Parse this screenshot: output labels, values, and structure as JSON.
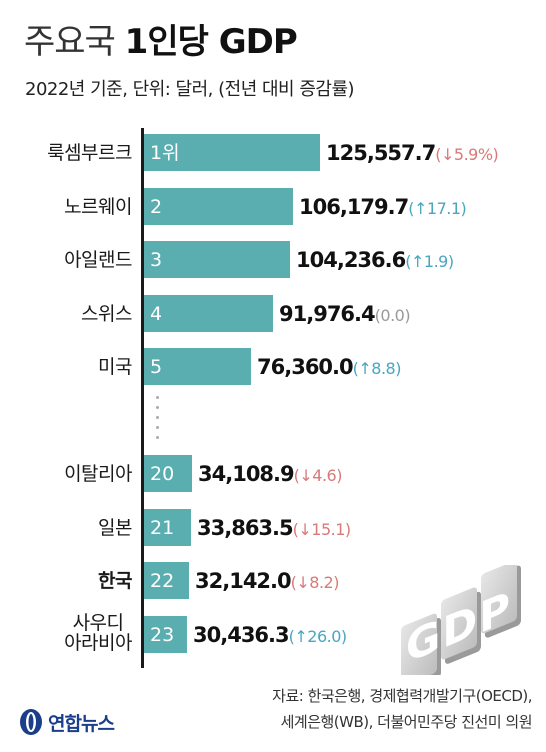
{
  "title_light": "주요국",
  "title_bold": "1인당 GDP",
  "subtitle": "2022년 기준, 단위: 달러, (전년 대비 증감률)",
  "chart_data": {
    "type": "bar",
    "orientation": "horizontal",
    "title": "주요국 1인당 GDP",
    "subtitle": "2022년 기준, 단위: 달러, (전년 대비 증감률)",
    "value_unit": "달러",
    "categories": [
      "룩셈부르크",
      "노르웨이",
      "아일랜드",
      "스위스",
      "미국",
      "이탈리아",
      "일본",
      "한국",
      "사우디 아라비아"
    ],
    "values": [
      125557.7,
      106179.7,
      104236.6,
      91976.4,
      76360.0,
      34108.9,
      33863.5,
      32142.0,
      30436.3
    ],
    "ranks": [
      "1위",
      "2",
      "3",
      "4",
      "5",
      "20",
      "21",
      "22",
      "23"
    ],
    "change_pct": [
      -5.9,
      17.1,
      1.9,
      0.0,
      8.8,
      -4.6,
      -15.1,
      -8.2,
      26.0
    ],
    "grid": false,
    "legend": "none"
  },
  "rows": [
    {
      "country": "룩셈부르크",
      "rank": "1위",
      "value_text": "125,557.7",
      "change_text": "(↓5.9%)",
      "dir": "down",
      "bold": false,
      "two_line": false
    },
    {
      "country": "노르웨이",
      "rank": "2",
      "value_text": "106,179.7",
      "change_text": "(↑17.1)",
      "dir": "up",
      "bold": false,
      "two_line": false
    },
    {
      "country": "아일랜드",
      "rank": "3",
      "value_text": "104,236.6",
      "change_text": "(↑1.9)",
      "dir": "up",
      "bold": false,
      "two_line": false
    },
    {
      "country": "스위스",
      "rank": "4",
      "value_text": "91,976.4",
      "change_text": "(0.0)",
      "dir": "flat",
      "bold": false,
      "two_line": false
    },
    {
      "country": "미국",
      "rank": "5",
      "value_text": "76,360.0",
      "change_text": "(↑8.8)",
      "dir": "up",
      "bold": false,
      "two_line": false
    },
    {
      "country": "이탈리아",
      "rank": "20",
      "value_text": "34,108.9",
      "change_text": "(↓4.6)",
      "dir": "down",
      "bold": false,
      "two_line": false
    },
    {
      "country": "일본",
      "rank": "21",
      "value_text": "33,863.5",
      "change_text": "(↓15.1)",
      "dir": "down",
      "bold": false,
      "two_line": false
    },
    {
      "country": "한국",
      "rank": "22",
      "value_text": "32,142.0",
      "change_text": "(↓8.2)",
      "dir": "down",
      "bold": true,
      "two_line": false
    },
    {
      "country": "사우디\n아라비아",
      "rank": "23",
      "value_text": "30,436.3",
      "change_text": "(↑26.0)",
      "dir": "up",
      "bold": false,
      "two_line": true
    }
  ],
  "illustration_text": "GDP",
  "source_line1": "자료: 한국은행, 경제협력개발기구(OECD),",
  "source_line2": "세계은행(WB), 더불어민주당 진선미 의원",
  "logo_text": "연합뉴스",
  "colors": {
    "bar": "#5aaeb0",
    "decrease": "#d77a78",
    "increase": "#4aa6c0",
    "unchanged": "#9a9a9a",
    "logo": "#1a3e8a"
  }
}
